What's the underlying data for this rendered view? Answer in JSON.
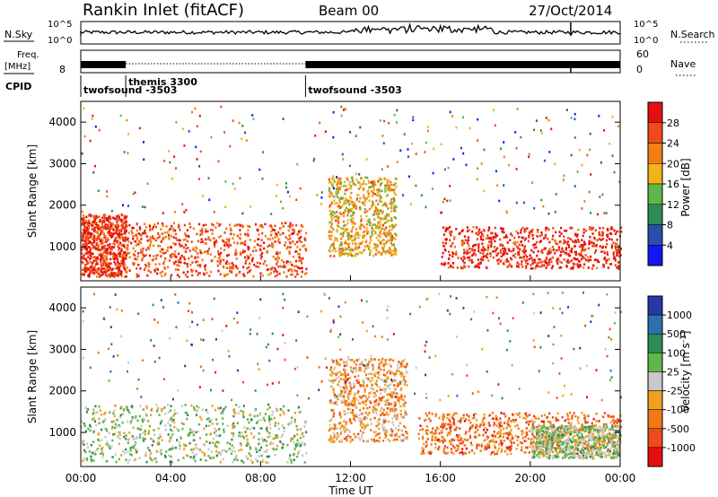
{
  "header": {
    "station": "Rankin Inlet (fitACF)",
    "beam": "Beam 00",
    "date": "27/Oct/2014"
  },
  "noise_panel": {
    "left_label": "N.Sky",
    "right_label": "N.Search",
    "tick_top": "10^5",
    "tick_bottom": "10^0"
  },
  "freq_panel": {
    "left_label_1": "Freq.",
    "left_label_2": "[MHz]",
    "right_label": "Nave",
    "left_tick_top": "",
    "left_tick_bottom": "8",
    "right_tick_top": "60",
    "right_tick_bottom": "0"
  },
  "cpid": {
    "label": "CPID",
    "segments": [
      {
        "name": "twofsound -3503",
        "start_hour": 0.0,
        "end_hour": 2.0,
        "row": 2
      },
      {
        "name": "themis 3300",
        "start_hour": 2.0,
        "end_hour": 10.0,
        "row": 1
      },
      {
        "name": "twofsound -3503",
        "start_hour": 10.0,
        "end_hour": 24.0,
        "row": 2
      }
    ]
  },
  "x_axis": {
    "label": "Time UT",
    "ticks": [
      "00:00",
      "04:00",
      "08:00",
      "12:00",
      "16:00",
      "20:00",
      "00:00"
    ]
  },
  "y_axis": {
    "label": "Slant Range [km]",
    "ticks": [
      "1000",
      "2000",
      "3000",
      "4000"
    ]
  },
  "power_scale": {
    "label": "Power [dB]",
    "ticks": [
      "4",
      "8",
      "12",
      "16",
      "20",
      "24",
      "28"
    ],
    "colors": [
      "#1515f5",
      "#2a4fa8",
      "#2e8b57",
      "#5fb74a",
      "#f1b21a",
      "#f07f16",
      "#ee4a1a",
      "#e60f0f"
    ]
  },
  "velocity_scale": {
    "label": "Velocity [m s",
    "label_superscript": "-1",
    "label_close": "]",
    "ticks": [
      "1000",
      "500",
      "100",
      "25",
      "-25",
      "-100",
      "-500",
      "-1000"
    ],
    "colors": [
      "#2438a8",
      "#2e6fb0",
      "#2e8b57",
      "#5fb74a",
      "#c8c8c8",
      "#f0a020",
      "#f07a16",
      "#ee4a1a",
      "#e60f0f"
    ]
  },
  "chart_data": {
    "type": "heatmap",
    "title": "Rankin Inlet (fitACF) Beam 00 27/Oct/2014",
    "xlabel": "Time UT",
    "ylabel": "Slant Range [km]",
    "xlim_hours": [
      0,
      24
    ],
    "ylim_km": [
      180,
      4500
    ],
    "panels": [
      {
        "quantity": "Power [dB]",
        "color_range": [
          0,
          30
        ],
        "scatter_regions": [
          {
            "t_start": 0.0,
            "t_end": 2.0,
            "r_start": 300,
            "r_end": 1800,
            "typical_value": 26
          },
          {
            "t_start": 2.0,
            "t_end": 10.0,
            "r_start": 300,
            "r_end": 1600,
            "typical_value": 24
          },
          {
            "t_start": 11.0,
            "t_end": 14.0,
            "r_start": 800,
            "r_end": 2700,
            "typical_value": 18
          },
          {
            "t_start": 16.0,
            "t_end": 24.0,
            "r_start": 500,
            "r_end": 1500,
            "typical_value": 27
          }
        ]
      },
      {
        "quantity": "Velocity [m s^-1]",
        "color_range": [
          -1000,
          1000
        ],
        "scatter_regions": [
          {
            "t_start": 0.0,
            "t_end": 10.0,
            "r_start": 300,
            "r_end": 1700,
            "typical_value": 100
          },
          {
            "t_start": 11.0,
            "t_end": 14.5,
            "r_start": 800,
            "r_end": 2800,
            "typical_value": -300
          },
          {
            "t_start": 15.0,
            "t_end": 24.0,
            "r_start": 500,
            "r_end": 1500,
            "typical_value": -500
          },
          {
            "t_start": 20.0,
            "t_end": 24.0,
            "r_start": 400,
            "r_end": 1200,
            "typical_value": 100
          }
        ]
      }
    ]
  }
}
